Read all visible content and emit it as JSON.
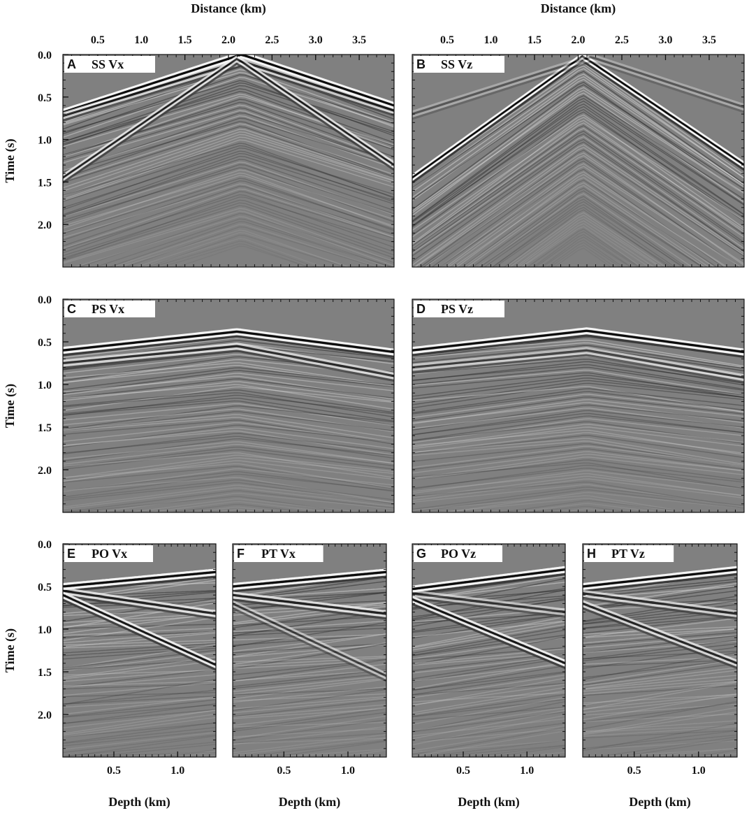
{
  "chart_data": [
    {
      "type": "heatmap",
      "panel_letter": "A",
      "panel_title": "SS Vx",
      "xlabel": "Distance (km)",
      "ylabel": "Time (s)",
      "xlim": [
        0.1,
        3.9
      ],
      "ylim": [
        0.0,
        2.5
      ],
      "x_ticks": [
        "0.5",
        "1.0",
        "1.5",
        "2.0",
        "2.5",
        "3.0",
        "3.5"
      ],
      "y_ticks": [
        "0.0",
        "0.5",
        "1.0",
        "1.5",
        "2.0"
      ],
      "colormap": "gray",
      "events": [
        {
          "x": [
            0.1,
            2.15,
            3.9
          ],
          "t": [
            0.68,
            0.0,
            0.6
          ],
          "strength": 1.0
        },
        {
          "x": [
            0.1,
            2.15,
            3.9
          ],
          "t": [
            0.72,
            0.08,
            0.66
          ],
          "strength": 0.7
        },
        {
          "x": [
            0.1,
            2.1,
            3.9
          ],
          "t": [
            1.45,
            0.05,
            1.3
          ],
          "strength": 0.8
        }
      ]
    },
    {
      "type": "heatmap",
      "panel_letter": "B",
      "panel_title": "SS Vz",
      "xlabel": "Distance (km)",
      "ylabel": "",
      "xlim": [
        0.1,
        3.9
      ],
      "ylim": [
        0.0,
        2.5
      ],
      "x_ticks": [
        "0.5",
        "1.0",
        "1.5",
        "2.0",
        "2.5",
        "3.0",
        "3.5"
      ],
      "y_ticks": [],
      "colormap": "gray",
      "events": [
        {
          "x": [
            0.1,
            2.05,
            3.9
          ],
          "t": [
            1.45,
            0.02,
            1.3
          ],
          "strength": 1.0
        },
        {
          "x": [
            0.1,
            2.15,
            3.9
          ],
          "t": [
            0.7,
            0.03,
            0.62
          ],
          "strength": 0.35
        }
      ]
    },
    {
      "type": "heatmap",
      "panel_letter": "C",
      "panel_title": "PS Vx",
      "xlabel": "",
      "ylabel": "Time (s)",
      "xlim": [
        0.1,
        3.9
      ],
      "ylim": [
        0.0,
        2.5
      ],
      "x_ticks": [],
      "y_ticks": [
        "0.0",
        "0.5",
        "1.0",
        "1.5",
        "2.0"
      ],
      "colormap": "gray",
      "events": [
        {
          "x": [
            0.1,
            2.1,
            3.9
          ],
          "t": [
            0.6,
            0.38,
            0.62
          ],
          "strength": 1.0
        },
        {
          "x": [
            0.1,
            2.1,
            3.9
          ],
          "t": [
            0.75,
            0.55,
            0.9
          ],
          "strength": 0.7
        }
      ]
    },
    {
      "type": "heatmap",
      "panel_letter": "D",
      "panel_title": "PS Vz",
      "xlabel": "",
      "ylabel": "",
      "xlim": [
        0.1,
        3.9
      ],
      "ylim": [
        0.0,
        2.5
      ],
      "x_ticks": [],
      "y_ticks": [],
      "colormap": "gray",
      "events": [
        {
          "x": [
            0.1,
            2.1,
            3.9
          ],
          "t": [
            0.6,
            0.37,
            0.62
          ],
          "strength": 1.0
        },
        {
          "x": [
            0.1,
            2.1,
            3.9
          ],
          "t": [
            0.8,
            0.6,
            0.92
          ],
          "strength": 0.6
        }
      ]
    },
    {
      "type": "heatmap",
      "panel_letter": "E",
      "panel_title": "PO Vx",
      "xlabel": "Depth (km)",
      "ylabel": "Time (s)",
      "xlim": [
        0.1,
        1.3
      ],
      "ylim": [
        0.0,
        2.5
      ],
      "x_ticks": [
        "0.5",
        "1.0"
      ],
      "y_ticks": [
        "0.0",
        "0.5",
        "1.0",
        "1.5",
        "2.0"
      ],
      "colormap": "gray",
      "events": [
        {
          "x": [
            0.1,
            1.3
          ],
          "t": [
            0.5,
            0.33
          ],
          "strength": 1.0
        },
        {
          "x": [
            0.1,
            1.3
          ],
          "t": [
            0.55,
            0.82
          ],
          "strength": 0.8
        },
        {
          "x": [
            0.1,
            1.3
          ],
          "t": [
            0.6,
            1.42
          ],
          "strength": 0.9
        }
      ]
    },
    {
      "type": "heatmap",
      "panel_letter": "F",
      "panel_title": "PT Vx",
      "xlabel": "Depth (km)",
      "ylabel": "",
      "xlim": [
        0.1,
        1.3
      ],
      "ylim": [
        0.0,
        2.5
      ],
      "x_ticks": [
        "0.5",
        "1.0"
      ],
      "y_ticks": [],
      "colormap": "gray",
      "events": [
        {
          "x": [
            0.1,
            1.3
          ],
          "t": [
            0.5,
            0.33
          ],
          "strength": 1.0
        },
        {
          "x": [
            0.1,
            1.3
          ],
          "t": [
            0.6,
            0.82
          ],
          "strength": 0.8
        },
        {
          "x": [
            0.1,
            1.3
          ],
          "t": [
            0.7,
            1.55
          ],
          "strength": 0.55
        }
      ]
    },
    {
      "type": "heatmap",
      "panel_letter": "G",
      "panel_title": "PO Vz",
      "xlabel": "Depth (km)",
      "ylabel": "",
      "xlim": [
        0.1,
        1.3
      ],
      "ylim": [
        0.0,
        2.5
      ],
      "x_ticks": [
        "0.5",
        "1.0"
      ],
      "y_ticks": [],
      "colormap": "gray",
      "events": [
        {
          "x": [
            0.1,
            1.3
          ],
          "t": [
            0.53,
            0.3
          ],
          "strength": 1.0
        },
        {
          "x": [
            0.1,
            1.3
          ],
          "t": [
            0.58,
            0.8
          ],
          "strength": 0.6
        },
        {
          "x": [
            0.1,
            1.3
          ],
          "t": [
            0.65,
            1.4
          ],
          "strength": 0.9
        }
      ]
    },
    {
      "type": "heatmap",
      "panel_letter": "H",
      "panel_title": "PT Vz",
      "xlabel": "Depth (km)",
      "ylabel": "",
      "xlim": [
        0.1,
        1.3
      ],
      "ylim": [
        0.0,
        2.5
      ],
      "x_ticks": [
        "0.5",
        "1.0"
      ],
      "y_ticks": [],
      "colormap": "gray",
      "events": [
        {
          "x": [
            0.1,
            1.3
          ],
          "t": [
            0.5,
            0.3
          ],
          "strength": 1.0
        },
        {
          "x": [
            0.1,
            1.3
          ],
          "t": [
            0.58,
            0.82
          ],
          "strength": 0.7
        },
        {
          "x": [
            0.1,
            1.3
          ],
          "t": [
            0.7,
            1.4
          ],
          "strength": 0.75
        }
      ]
    }
  ]
}
